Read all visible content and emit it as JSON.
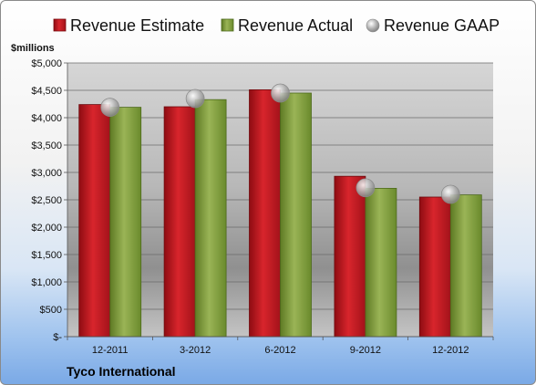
{
  "chart_data": {
    "type": "bar",
    "title": "",
    "ylabel": "$millions",
    "xlabel": "",
    "company": "Tyco International",
    "categories": [
      "12-2011",
      "3-2012",
      "6-2012",
      "9-2012",
      "12-2012"
    ],
    "ylim": [
      0,
      5000
    ],
    "yticks": [
      0,
      500,
      1000,
      1500,
      2000,
      2500,
      3000,
      3500,
      4000,
      4500,
      5000
    ],
    "ytick_labels": [
      "$-",
      "$500",
      "$1,000",
      "$1,500",
      "$2,000",
      "$2,500",
      "$3,000",
      "$3,500",
      "$4,000",
      "$4,500",
      "$5,000"
    ],
    "grid": true,
    "legend_position": "top",
    "series": [
      {
        "name": "Revenue Estimate",
        "kind": "bar",
        "color": "#c0141c",
        "values": [
          4240,
          4200,
          4510,
          2930,
          2550
        ]
      },
      {
        "name": "Revenue Actual",
        "kind": "bar",
        "color": "#7f9c3a",
        "values": [
          4190,
          4330,
          4450,
          2710,
          2590
        ]
      },
      {
        "name": "Revenue GAAP",
        "kind": "marker",
        "color": "#9a9a9a",
        "values": [
          4190,
          4350,
          4450,
          2720,
          2600
        ]
      }
    ]
  }
}
